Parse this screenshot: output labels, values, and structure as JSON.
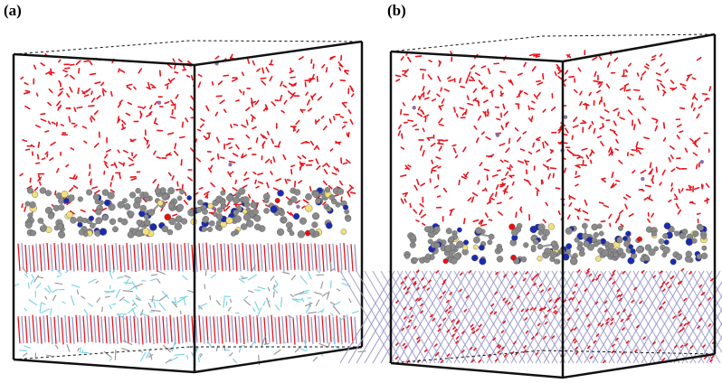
{
  "panels": [
    {
      "label": "(a)"
    },
    {
      "label": "(b)"
    }
  ],
  "colors": {
    "water": "#e8141c",
    "box": "#111111",
    "carbon": "#8a8a8a",
    "nitrogen": "#1b2bb0",
    "sulfur": "#f4e07a",
    "oxygen": "#e81010",
    "clay_layer_red": "#e8141c",
    "clay_layer_violet": "#9a96c8",
    "interlayer": "#7fd3e6",
    "ion": "#8c6fa8"
  },
  "icons": [
    "water-molecule",
    "molecular-ball-stick",
    "crystal-lattice"
  ]
}
